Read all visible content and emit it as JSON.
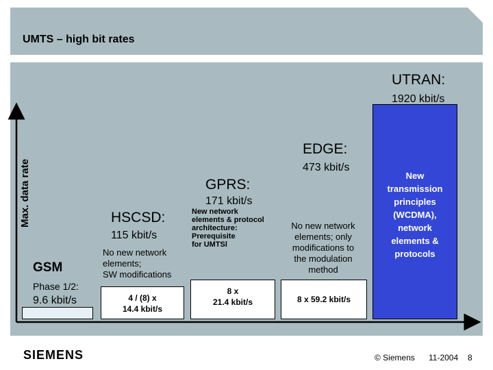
{
  "header": {
    "title": "UMTS – high bit rates"
  },
  "chart_data": {
    "type": "bar",
    "ylabel": "Max. data rate",
    "categories": [
      "GSM",
      "HSCSD",
      "GPRS",
      "EDGE",
      "UTRAN"
    ],
    "values": [
      9.6,
      115,
      171,
      473,
      1920
    ],
    "units": "kbit/s",
    "bars": [
      {
        "name": "GSM",
        "rate_label": "9.6 kbit/s",
        "extra_label": "Phase 1/2:",
        "bar_text": "",
        "note": "",
        "style": "gsm"
      },
      {
        "name": "HSCSD:",
        "rate_label": "115 kbit/s",
        "bar_text": "4 / (8) x\n14.4 kbit/s",
        "note": "No new network\nelements;\nSW modifications",
        "style": "white"
      },
      {
        "name": "GPRS:",
        "rate_label": "171 kbit/s",
        "bar_text": "8 x\n21.4 kbit/s",
        "note": "New network\nelements & protocol\narchitecture:\nPrerequisite\nfor UMTSl",
        "style": "white"
      },
      {
        "name": "EDGE:",
        "rate_label": "473 kbit/s",
        "bar_text": "8 x 59.2 kbit/s",
        "note": "No new network\nelements; only\nmodifications to\nthe modulation\nmethod",
        "style": "white"
      },
      {
        "name": "UTRAN:",
        "rate_label": "1920 kbit/s",
        "bar_text": "New\ntransmission\nprinciples\n(WCDMA),\nnetwork\nelements &\nprotocols",
        "note": "",
        "style": "blue"
      }
    ]
  },
  "footer": {
    "logo": "SIEMENS",
    "copyright": "© Siemens",
    "date": "11-2004",
    "page": "8"
  }
}
